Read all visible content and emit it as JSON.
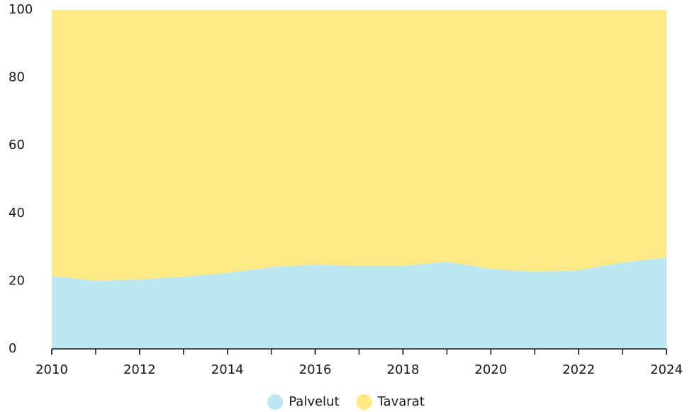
{
  "chart_data": {
    "type": "stacked_area",
    "x": [
      2010,
      2011,
      2012,
      2013,
      2014,
      2015,
      2016,
      2017,
      2018,
      2019,
      2020,
      2021,
      2022,
      2023,
      2024
    ],
    "series": [
      {
        "name": "Palvelut",
        "color": "#bde6f3",
        "values": [
          21.5,
          20.1,
          20.5,
          21.3,
          22.4,
          24.1,
          24.9,
          24.5,
          24.5,
          25.7,
          23.6,
          22.8,
          23.2,
          25.5,
          27.0
        ]
      },
      {
        "name": "Tavarat",
        "color": "#fdea84",
        "values": [
          78.5,
          79.9,
          79.5,
          78.7,
          77.6,
          75.9,
          75.1,
          75.5,
          75.5,
          74.3,
          76.4,
          77.2,
          76.8,
          74.5,
          73.0
        ]
      }
    ],
    "xlim": [
      2010,
      2024
    ],
    "xticks": [
      2010,
      2012,
      2014,
      2016,
      2018,
      2020,
      2022,
      2024
    ],
    "ylim": [
      0,
      100
    ],
    "yticks": [
      0,
      20,
      40,
      60,
      80,
      100
    ],
    "legend": "bottom"
  }
}
